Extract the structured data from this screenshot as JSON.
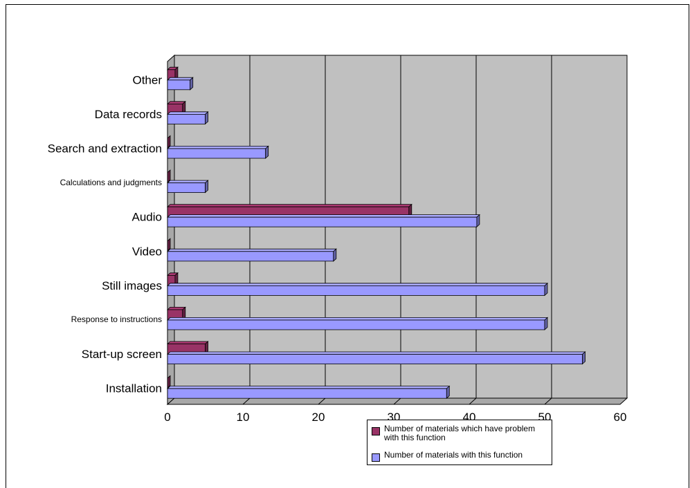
{
  "chart_data": {
    "type": "bar",
    "orientation": "horizontal",
    "categories": [
      "Installation",
      "Start-up screen",
      "Response to instructions",
      "Still images",
      "Video",
      "Audio",
      "Calculations and judgments",
      "Search and extraction",
      "Data records",
      "Other"
    ],
    "series": [
      {
        "name": "Number of materials which have problem with this function",
        "values": [
          0,
          5,
          2,
          1,
          0,
          32,
          0,
          0,
          2,
          1
        ],
        "color": "#993366"
      },
      {
        "name": "Number of materials with this function",
        "values": [
          37,
          55,
          50,
          50,
          22,
          41,
          5,
          13,
          5,
          3
        ],
        "color": "#9999ff"
      }
    ],
    "xlim": [
      0,
      60
    ],
    "xticks": [
      "0",
      "10",
      "20",
      "30",
      "40",
      "50",
      "60"
    ],
    "grid": true,
    "legend_position": "bottom-right",
    "plot_background": "#c0c0c0"
  }
}
